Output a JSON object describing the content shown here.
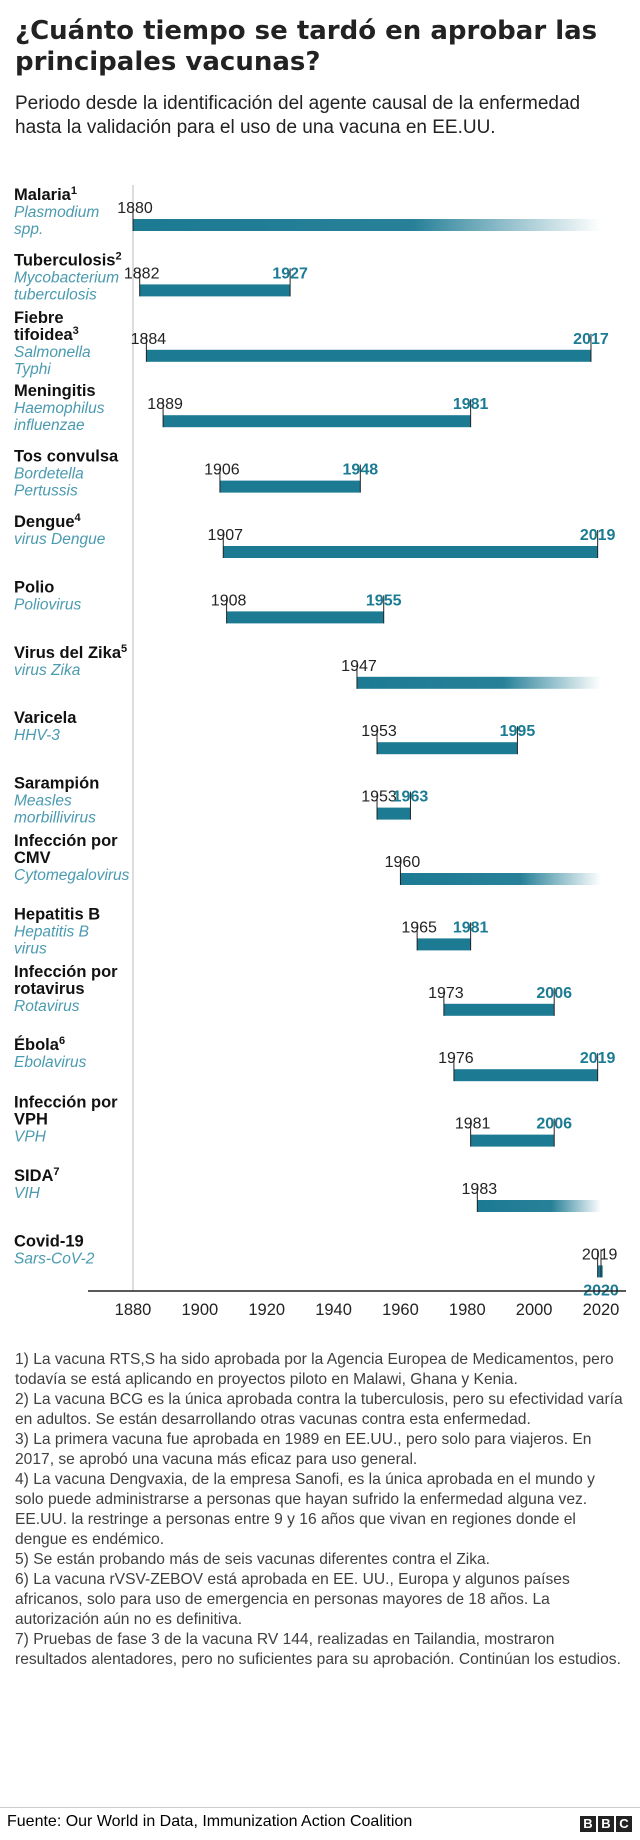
{
  "title": "¿Cuánto tiempo se tardó en aprobar las principales vacunas?",
  "subtitle": "Periodo desde la identificación del agente causal de la enfermedad hasta la validación para el uso de una vacuna en EE.UU.",
  "colors": {
    "bar": "#1c7a93",
    "label_end": "#1b7b93",
    "pathogen": "#4a9ab0",
    "axis": "#222222",
    "grid": "#bbbbbb"
  },
  "chart_data": {
    "type": "range-bar",
    "xlim": [
      1880,
      2020
    ],
    "x_ticks": [
      "1880",
      "1900",
      "1920",
      "1940",
      "1960",
      "1980",
      "2000",
      "2020"
    ],
    "rows": [
      {
        "disease": "Malaria",
        "sup": "1",
        "pathogen": "Plasmodium spp.",
        "start": 1880,
        "end": null,
        "start_label": "1880",
        "end_label": ""
      },
      {
        "disease": "Tuberculosis",
        "sup": "2",
        "pathogen": "Mycobacterium tuberculosis",
        "start": 1882,
        "end": 1927,
        "start_label": "1882",
        "end_label": "1927"
      },
      {
        "disease": "Fiebre tifoidea",
        "sup": "3",
        "pathogen": "Salmonella Typhi",
        "start": 1884,
        "end": 2017,
        "start_label": "1884",
        "end_label": "2017"
      },
      {
        "disease": "Meningitis",
        "sup": "",
        "pathogen": "Haemophilus influenzae",
        "start": 1889,
        "end": 1981,
        "start_label": "1889",
        "end_label": "1981"
      },
      {
        "disease": "Tos convulsa",
        "sup": "",
        "pathogen": "Bordetella Pertussis",
        "start": 1906,
        "end": 1948,
        "start_label": "1906",
        "end_label": "1948"
      },
      {
        "disease": "Dengue",
        "sup": "4",
        "pathogen": "virus Dengue",
        "start": 1907,
        "end": 2019,
        "start_label": "1907",
        "end_label": "2019"
      },
      {
        "disease": "Polio",
        "sup": "",
        "pathogen": "Poliovirus",
        "start": 1908,
        "end": 1955,
        "start_label": "1908",
        "end_label": "1955"
      },
      {
        "disease": "Virus del Zika",
        "sup": "5",
        "pathogen": "virus Zika",
        "start": 1947,
        "end": null,
        "start_label": "1947",
        "end_label": ""
      },
      {
        "disease": "Varicela",
        "sup": "",
        "pathogen": "HHV-3",
        "start": 1953,
        "end": 1995,
        "start_label": "1953",
        "end_label": "1995"
      },
      {
        "disease": "Sarampión",
        "sup": "",
        "pathogen": "Measles morbillivirus",
        "start": 1953,
        "end": 1963,
        "start_label": "1953",
        "end_label": "1963"
      },
      {
        "disease": "Infección por CMV",
        "sup": "",
        "pathogen": "Cytomegalovirus",
        "start": 1960,
        "end": null,
        "start_label": "1960",
        "end_label": ""
      },
      {
        "disease": "Hepatitis B",
        "sup": "",
        "pathogen": "Hepatitis B virus",
        "start": 1965,
        "end": 1981,
        "start_label": "1965",
        "end_label": "1981"
      },
      {
        "disease": "Infección por rotavirus",
        "sup": "",
        "pathogen": "Rotavirus",
        "start": 1973,
        "end": 2006,
        "start_label": "1973",
        "end_label": "2006"
      },
      {
        "disease": "Ébola",
        "sup": "6",
        "pathogen": "Ebolavirus",
        "start": 1976,
        "end": 2019,
        "start_label": "1976",
        "end_label": "2019"
      },
      {
        "disease": "Infección por VPH",
        "sup": "",
        "pathogen": "VPH",
        "start": 1981,
        "end": 2006,
        "start_label": "1981",
        "end_label": "2006"
      },
      {
        "disease": "SIDA",
        "sup": "7",
        "pathogen": "VIH",
        "start": 1983,
        "end": null,
        "start_label": "1983",
        "end_label": ""
      },
      {
        "disease": "Covid-19",
        "sup": "",
        "pathogen": "Sars-CoV-2",
        "start": 2019,
        "end": 2020,
        "start_label": "2019",
        "end_label": "2020"
      }
    ]
  },
  "notes": [
    "1) La vacuna RTS,S ha sido aprobada por la Agencia Europea de Medicamentos, pero todavía se está aplicando en proyectos piloto en Malawi, Ghana y Kenia.",
    "2) La vacuna BCG es la única aprobada contra la tuberculosis, pero su efectividad varía en adultos. Se están desarrollando otras vacunas contra esta enfermedad.",
    "3) La primera vacuna fue aprobada en 1989 en EE.UU., pero solo para viajeros. En 2017, se aprobó una vacuna más eficaz para uso general.",
    "4) La vacuna Dengvaxia, de la empresa Sanofi, es la única aprobada en el mundo y solo puede administrarse a personas que hayan sufrido la enfermedad alguna vez. EE.UU. la restringe a personas entre 9 y 16 años que vivan en regiones donde el dengue es endémico.",
    "5) Se están probando más de seis vacunas diferentes contra el Zika.",
    "6) La vacuna rVSV-ZEBOV está aprobada en EE. UU., Europa y algunos países africanos, solo para uso de emergencia en personas mayores de 18 años. La autorización aún no es definitiva.",
    "7) Pruebas de fase 3 de la vacuna RV 144, realizadas en Tailandia, mostraron resultados alentadores, pero no suficientes para su aprobación. Continúan los estudios."
  ],
  "source": "Fuente: Our World in Data, Immunization Action Coalition",
  "logo": {
    "letters": [
      "B",
      "B",
      "C"
    ]
  }
}
